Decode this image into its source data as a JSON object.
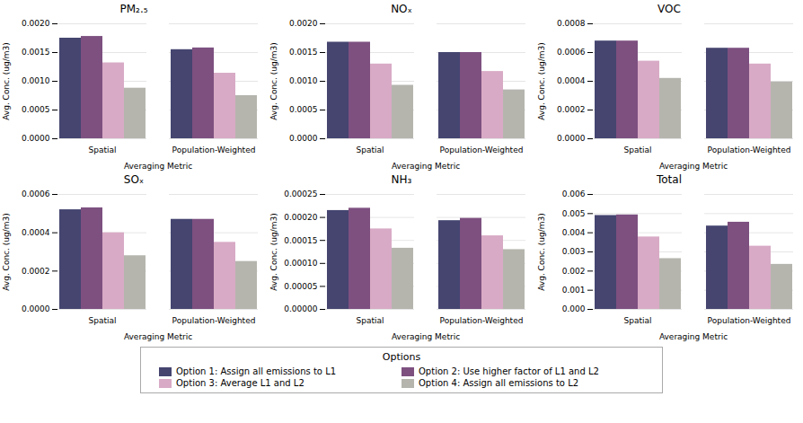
{
  "legend_title": "Options",
  "chart_data": [
    {
      "type": "bar",
      "title": "PM₂.₅",
      "xlabel": "Averaging Metric",
      "ylabel": "Avg. Conc. (ug/m3)",
      "categories": [
        "Spatial",
        "Population-Weighted"
      ],
      "series": [
        {
          "name": "Option 1: Assign all emissions to L1",
          "color": "#454570",
          "values": [
            0.00175,
            0.00155
          ]
        },
        {
          "name": "Option 2: Use higher factor of L1 and L2",
          "color": "#7d5080",
          "values": [
            0.00178,
            0.00158
          ]
        },
        {
          "name": "Option 3: Average L1 and L2",
          "color": "#d8aac5",
          "values": [
            0.00132,
            0.00114
          ]
        },
        {
          "name": "Option 4: Assign all emissions to L2",
          "color": "#b5b5ae",
          "values": [
            0.00088,
            0.00075
          ]
        }
      ],
      "ylim": [
        0,
        0.002
      ],
      "yticks": [
        {
          "value": 0,
          "label": "0.0000"
        },
        0.0005,
        {
          "value": 0.001,
          "label": "0.0010"
        },
        0.0015,
        {
          "value": 0.002,
          "label": "0.0020"
        }
      ],
      "grid": true,
      "legend": "bottom"
    },
    {
      "type": "bar",
      "title": "NOₓ",
      "xlabel": "Averaging Metric",
      "ylabel": "Avg. Conc. (ug/m3)",
      "categories": [
        "Spatial",
        "Population-Weighted"
      ],
      "series": [
        {
          "name": "Option 1: Assign all emissions to L1",
          "color": "#454570",
          "values": [
            0.00168,
            0.0015
          ]
        },
        {
          "name": "Option 2: Use higher factor of L1 and L2",
          "color": "#7d5080",
          "values": [
            0.00168,
            0.0015
          ]
        },
        {
          "name": "Option 3: Average L1 and L2",
          "color": "#d8aac5",
          "values": [
            0.0013,
            0.00117
          ]
        },
        {
          "name": "Option 4: Assign all emissions to L2",
          "color": "#b5b5ae",
          "values": [
            0.00093,
            0.00085
          ]
        }
      ],
      "ylim": [
        0,
        0.002
      ],
      "yticks": [
        {
          "value": 0,
          "label": "0.0000"
        },
        0.0005,
        {
          "value": 0.001,
          "label": "0.0010"
        },
        0.0015,
        {
          "value": 0.002,
          "label": "0.0020"
        }
      ],
      "grid": true,
      "legend": "bottom"
    },
    {
      "type": "bar",
      "title": "VOC",
      "xlabel": "Averaging Metric",
      "ylabel": "Avg. Conc. (ug/m3)",
      "categories": [
        "Spatial",
        "Population-Weighted"
      ],
      "series": [
        {
          "name": "Option 1: Assign all emissions to L1",
          "color": "#454570",
          "values": [
            0.00068,
            0.00063
          ]
        },
        {
          "name": "Option 2: Use higher factor of L1 and L2",
          "color": "#7d5080",
          "values": [
            0.00068,
            0.00063
          ]
        },
        {
          "name": "Option 3: Average L1 and L2",
          "color": "#d8aac5",
          "values": [
            0.00054,
            0.00052
          ]
        },
        {
          "name": "Option 4: Assign all emissions to L2",
          "color": "#b5b5ae",
          "values": [
            0.00042,
            0.000395
          ]
        }
      ],
      "ylim": [
        0,
        0.0008
      ],
      "yticks": [
        {
          "value": 0,
          "label": "0.0000"
        },
        0.0002,
        0.0004,
        0.0006,
        0.0008
      ],
      "grid": true,
      "legend": "bottom"
    },
    {
      "type": "bar",
      "title": "SOₓ",
      "xlabel": "Averaging Metric",
      "ylabel": "Avg. Conc. (ug/m3)",
      "categories": [
        "Spatial",
        "Population-Weighted"
      ],
      "series": [
        {
          "name": "Option 1: Assign all emissions to L1",
          "color": "#454570",
          "values": [
            0.00052,
            0.00047
          ]
        },
        {
          "name": "Option 2: Use higher factor of L1 and L2",
          "color": "#7d5080",
          "values": [
            0.00053,
            0.00047
          ]
        },
        {
          "name": "Option 3: Average L1 and L2",
          "color": "#d8aac5",
          "values": [
            0.0004,
            0.00035
          ]
        },
        {
          "name": "Option 4: Assign all emissions to L2",
          "color": "#b5b5ae",
          "values": [
            0.00028,
            0.00025
          ]
        }
      ],
      "ylim": [
        0,
        0.0006
      ],
      "yticks": [
        {
          "value": 0,
          "label": "0.0000"
        },
        0.0002,
        0.0004,
        0.0006
      ],
      "grid": true,
      "legend": "bottom"
    },
    {
      "type": "bar",
      "title": "NH₃",
      "xlabel": "Averaging Metric",
      "ylabel": "Avg. Conc. (ug/m3)",
      "categories": [
        "Spatial",
        "Population-Weighted"
      ],
      "series": [
        {
          "name": "Option 1: Assign all emissions to L1",
          "color": "#454570",
          "values": [
            0.000215,
            0.000193
          ]
        },
        {
          "name": "Option 2: Use higher factor of L1 and L2",
          "color": "#7d5080",
          "values": [
            0.00022,
            0.000198
          ]
        },
        {
          "name": "Option 3: Average L1 and L2",
          "color": "#d8aac5",
          "values": [
            0.000175,
            0.00016
          ]
        },
        {
          "name": "Option 4: Assign all emissions to L2",
          "color": "#b5b5ae",
          "values": [
            0.000133,
            0.00013
          ]
        }
      ],
      "ylim": [
        0,
        0.00025
      ],
      "yticks": [
        {
          "value": 0,
          "label": "0.00000"
        },
        5e-05,
        {
          "value": 0.0001,
          "label": "0.00010"
        },
        0.00015,
        {
          "value": 0.0002,
          "label": "0.00020"
        },
        0.00025
      ],
      "grid": true,
      "legend": "bottom"
    },
    {
      "type": "bar",
      "title": "Total",
      "xlabel": "Averaging Metric",
      "ylabel": "Avg. Conc. (ug/m3)",
      "categories": [
        "Spatial",
        "Population-Weighted"
      ],
      "series": [
        {
          "name": "Option 1: Assign all emissions to L1",
          "color": "#454570",
          "values": [
            0.0049,
            0.00435
          ]
        },
        {
          "name": "Option 2: Use higher factor of L1 and L2",
          "color": "#7d5080",
          "values": [
            0.00493,
            0.00455
          ]
        },
        {
          "name": "Option 3: Average L1 and L2",
          "color": "#d8aac5",
          "values": [
            0.00378,
            0.0033
          ]
        },
        {
          "name": "Option 4: Assign all emissions to L2",
          "color": "#b5b5ae",
          "values": [
            0.00265,
            0.00235
          ]
        }
      ],
      "ylim": [
        0,
        0.006
      ],
      "yticks": [
        {
          "value": 0,
          "label": "0.000"
        },
        0.001,
        0.002,
        0.003,
        0.004,
        0.005,
        0.006
      ],
      "grid": true,
      "legend": "bottom"
    }
  ]
}
